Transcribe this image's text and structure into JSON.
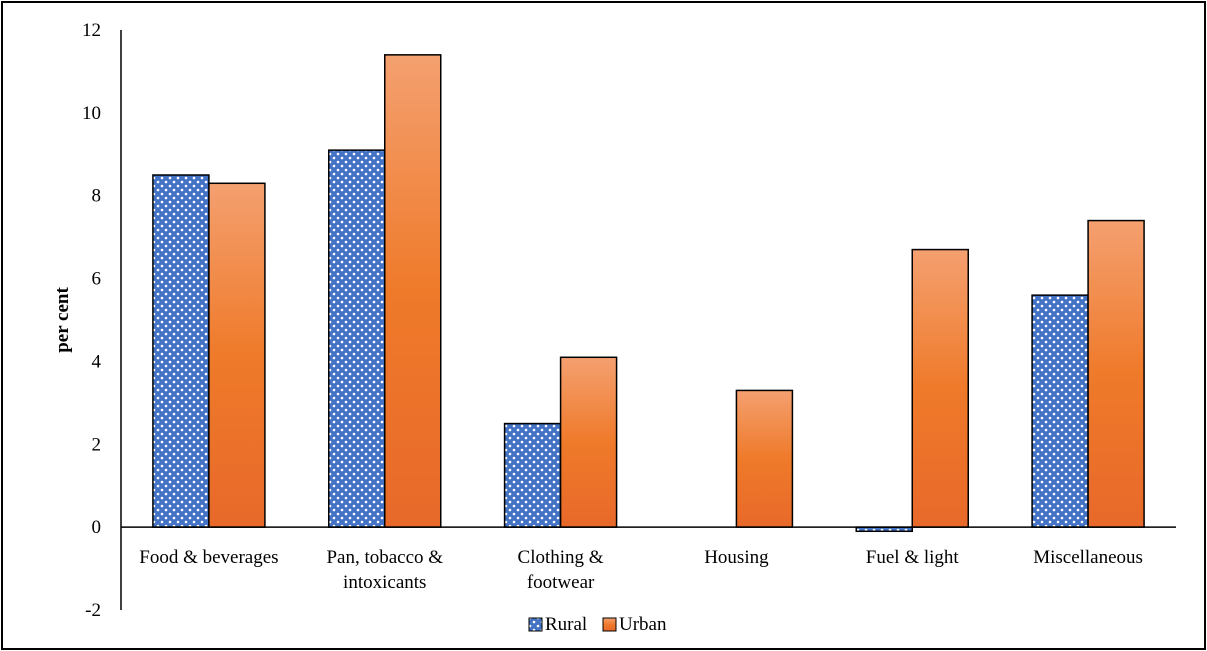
{
  "chart_data": {
    "type": "bar",
    "title": "",
    "xlabel": "",
    "ylabel": "per cent",
    "ylim": [
      -2,
      12
    ],
    "yticks": [
      -2,
      0,
      2,
      4,
      6,
      8,
      10,
      12
    ],
    "grid": false,
    "legend_position": "bottom-center",
    "categories": [
      [
        "Food & beverages"
      ],
      [
        "Pan, tobacco &",
        "intoxicants"
      ],
      [
        "Clothing &",
        "footwear"
      ],
      [
        "Housing"
      ],
      [
        "Fuel & light"
      ],
      [
        "Miscellaneous"
      ]
    ],
    "series": [
      {
        "name": "Rural",
        "values": [
          8.5,
          9.1,
          2.5,
          0.0,
          -0.1,
          5.6
        ],
        "color": "#4472C4",
        "pattern": "dotted"
      },
      {
        "name": "Urban",
        "values": [
          8.3,
          11.4,
          4.1,
          3.3,
          6.7,
          7.4
        ],
        "color": "#ED7D31",
        "pattern": "gradient"
      }
    ]
  }
}
